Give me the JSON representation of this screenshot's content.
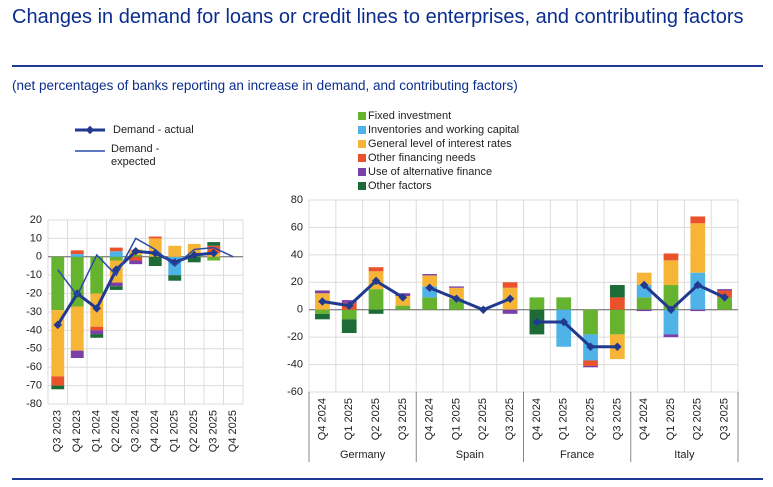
{
  "chart_data": {
    "type": "bar",
    "title": "Changes in demand for loans or credit lines to enterprises, and contributing factors",
    "subtitle": "(net percentages of banks reporting an increase in demand, and contributing factors)",
    "series": [
      {
        "name": "Fixed investment",
        "color": "#65b32e"
      },
      {
        "name": "Inventories and working capital",
        "color": "#4fb3e8"
      },
      {
        "name": "General level of interest rates",
        "color": "#f7b538"
      },
      {
        "name": "Other financing needs",
        "color": "#e9522a"
      },
      {
        "name": "Use of alternative finance",
        "color": "#7b3fa8"
      },
      {
        "name": "Other factors",
        "color": "#1d6b36"
      }
    ],
    "lines": [
      {
        "name": "Demand - actual",
        "color": "#213a8f"
      },
      {
        "name": "Demand - expected",
        "color": "#2a4aa8"
      }
    ],
    "panels": [
      {
        "categories": [
          "Q3 2023",
          "Q4 2023",
          "Q1 2024",
          "Q2 2024",
          "Q3 2024",
          "Q4 2024",
          "Q1 2025",
          "Q2 2025",
          "Q3 2025",
          "Q4 2025"
        ],
        "ylim": [
          -80,
          20
        ],
        "yticks": [
          -80,
          -70,
          -60,
          -50,
          -40,
          -30,
          -20,
          -10,
          0,
          10,
          20
        ],
        "series": [
          {
            "values": [
              -29,
              -27,
              -20,
              -2,
              1,
              null,
              null,
              1,
              -2,
              null
            ]
          },
          {
            "values": [
              null,
              1.5,
              null,
              3,
              null,
              null,
              -10,
              null,
              null,
              null
            ]
          },
          {
            "values": [
              -36,
              -24,
              -18,
              -12,
              3,
              10,
              6,
              6,
              2,
              null
            ]
          },
          {
            "values": [
              -5,
              2,
              -2,
              2,
              -2,
              1,
              null,
              null,
              4,
              null
            ]
          },
          {
            "values": [
              null,
              -4,
              -2,
              -2,
              -2,
              null,
              null,
              null,
              null,
              null
            ]
          },
          {
            "values": [
              -2,
              null,
              -2,
              -2,
              null,
              -5,
              -3,
              -3,
              2,
              null
            ]
          }
        ],
        "lines": [
          {
            "values": [
              -37,
              -20,
              -28,
              -7,
              3,
              2,
              -3,
              1,
              2,
              null
            ]
          },
          {
            "values": [
              -7,
              -21,
              1,
              -10,
              10,
              4,
              -5,
              4,
              5,
              0
            ]
          }
        ]
      },
      {
        "categories": [
          "Q4 2024",
          "Q1 2025",
          "Q2 2025",
          "Q3 2025",
          "Q4 2024",
          "Q1 2025",
          "Q2 2025",
          "Q3 2025",
          "Q4 2024",
          "Q1 2025",
          "Q2 2025",
          "Q3 2025",
          "Q4 2024",
          "Q1 2025",
          "Q2 2025",
          "Q3 2025"
        ],
        "groups": [
          "Germany",
          "Spain",
          "France",
          "Italy"
        ],
        "ylim": [
          -60,
          80
        ],
        "yticks": [
          -60,
          -40,
          -20,
          0,
          20,
          40,
          60,
          80
        ],
        "series": [
          {
            "values": [
              -3,
              -7,
              15,
              3,
              9,
              8,
              null,
              null,
              9,
              9,
              -18,
              -18,
              9,
              18,
              null,
              9
            ]
          },
          {
            "values": [
              null,
              null,
              null,
              null,
              8,
              null,
              null,
              null,
              null,
              -27,
              -19,
              null,
              9,
              -18,
              27,
              null
            ]
          },
          {
            "values": [
              12,
              null,
              13,
              7,
              8,
              8,
              null,
              16,
              null,
              null,
              null,
              -18,
              9,
              18,
              36,
              null
            ]
          },
          {
            "values": [
              null,
              5,
              3,
              null,
              null,
              null,
              null,
              4,
              null,
              null,
              -4,
              9,
              null,
              5,
              5,
              5
            ]
          },
          {
            "values": [
              2,
              2,
              null,
              2,
              1,
              1,
              null,
              -3,
              null,
              null,
              -1,
              null,
              -1,
              -2,
              -1,
              1
            ]
          },
          {
            "values": [
              -4,
              -10,
              -3,
              null,
              null,
              null,
              null,
              null,
              -18,
              null,
              null,
              9,
              null,
              null,
              null,
              null
            ]
          }
        ],
        "lines": [
          {
            "values": [
              6,
              3,
              21,
              9,
              16,
              8,
              0,
              8,
              -9,
              -9,
              -27,
              -27,
              18,
              0,
              18,
              9
            ]
          }
        ]
      }
    ]
  }
}
